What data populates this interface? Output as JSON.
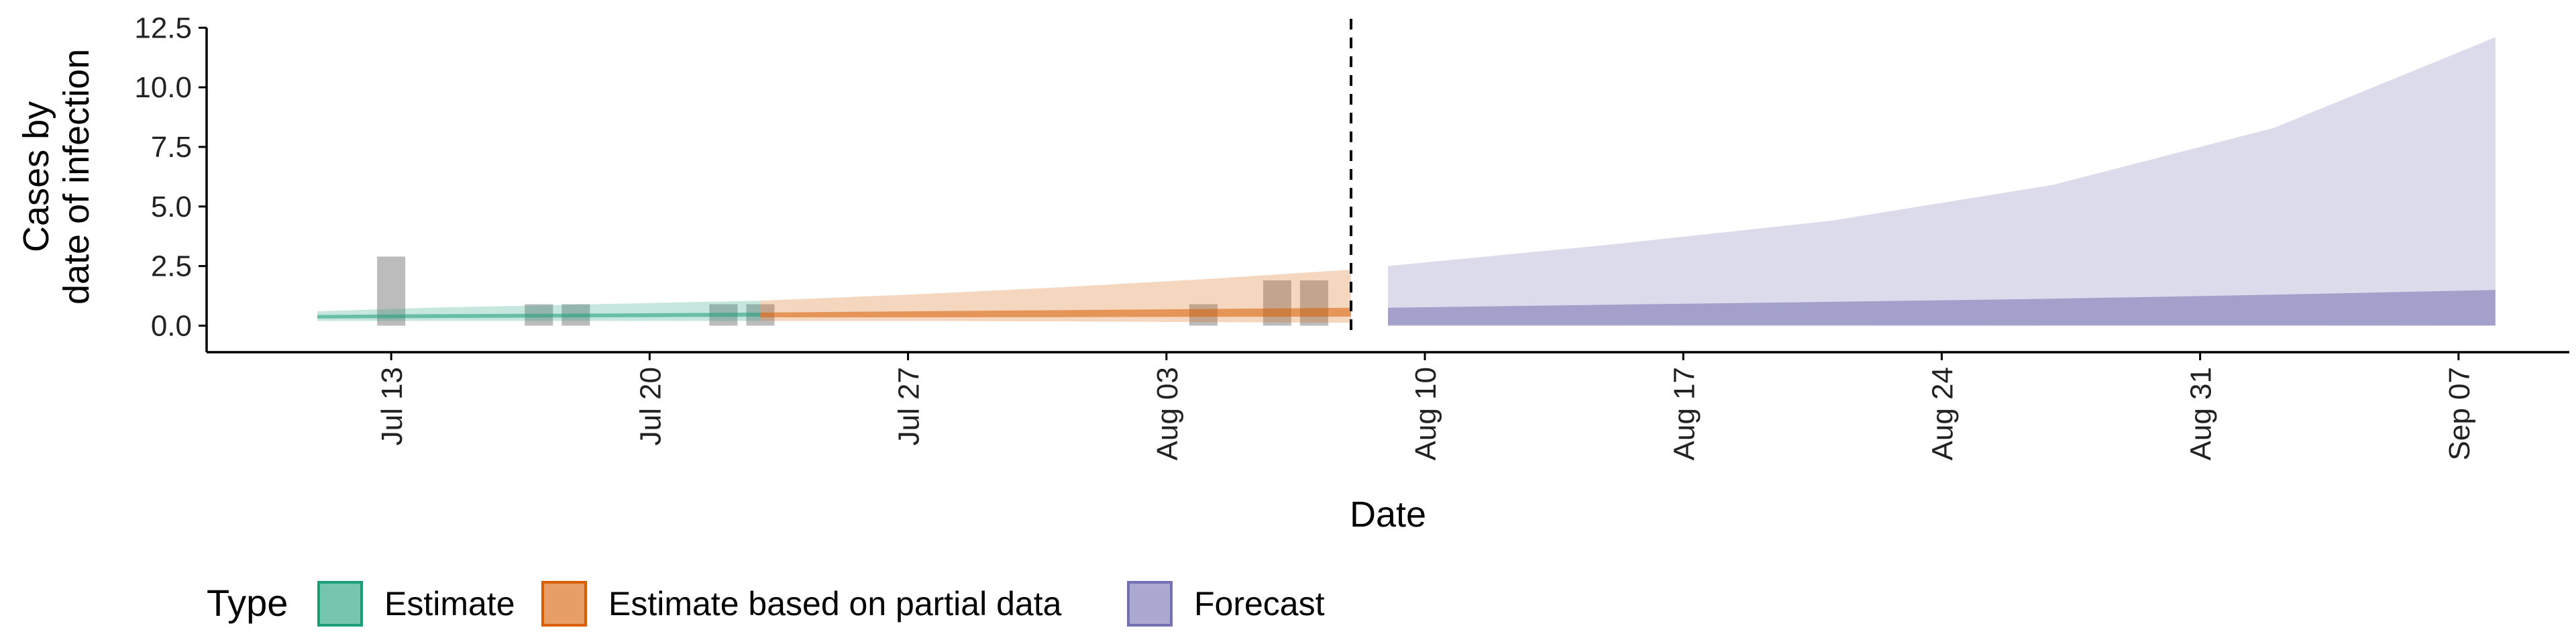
{
  "chart_data": {
    "type": "area",
    "xlabel": "Date",
    "ylabel_lines": [
      "Cases by",
      "date of infection"
    ],
    "ylim": [
      0,
      12.5
    ],
    "y_ticks": [
      0.0,
      2.5,
      5.0,
      7.5,
      10.0,
      12.5
    ],
    "y_tick_labels": [
      "0.0",
      "2.5",
      "5.0",
      "7.5",
      "10.0",
      "12.5"
    ],
    "xlim": [
      "2020-07-08",
      "2020-09-10"
    ],
    "x_ticks": [
      "2020-07-13",
      "2020-07-20",
      "2020-07-27",
      "2020-08-03",
      "2020-08-10",
      "2020-08-17",
      "2020-08-24",
      "2020-08-31",
      "2020-09-07"
    ],
    "x_tick_labels": [
      "Jul 13",
      "Jul 20",
      "Jul 27",
      "Aug 03",
      "Aug 10",
      "Aug 17",
      "Aug 24",
      "Aug 31",
      "Sep 07"
    ],
    "forecast_start": "2020-08-08",
    "legend": {
      "title": "Type",
      "position": "bottom",
      "entries": [
        "Estimate",
        "Estimate based on partial data",
        "Forecast"
      ]
    },
    "colors": {
      "Estimate": "#1b9e77",
      "Estimate based on partial data": "#d95f02",
      "Forecast": "#7570b3",
      "observed": "#a6a6a6"
    },
    "observed_cases": {
      "dates": [
        "2020-07-13",
        "2020-07-17",
        "2020-07-18",
        "2020-07-22",
        "2020-07-23",
        "2020-08-04",
        "2020-08-06",
        "2020-08-07"
      ],
      "values": [
        2.9,
        0.9,
        0.9,
        0.9,
        0.9,
        0.9,
        1.9,
        1.9
      ]
    },
    "series": [
      {
        "name": "Estimate",
        "dates": [
          "2020-07-11",
          "2020-07-14",
          "2020-07-17",
          "2020-07-20",
          "2020-07-23"
        ],
        "outer_lower": [
          0.2,
          0.2,
          0.2,
          0.2,
          0.2
        ],
        "outer_upper": [
          0.6,
          0.75,
          0.85,
          0.95,
          1.05
        ],
        "inner_lower": [
          0.3,
          0.32,
          0.34,
          0.36,
          0.38
        ],
        "inner_upper": [
          0.45,
          0.48,
          0.5,
          0.52,
          0.55
        ]
      },
      {
        "name": "Estimate based on partial data",
        "dates": [
          "2020-07-23",
          "2020-07-27",
          "2020-07-31",
          "2020-08-04",
          "2020-08-08"
        ],
        "outer_lower": [
          0.2,
          0.2,
          0.18,
          0.15,
          0.12
        ],
        "outer_upper": [
          1.05,
          1.3,
          1.6,
          1.95,
          2.35
        ],
        "inner_lower": [
          0.35,
          0.35,
          0.36,
          0.37,
          0.38
        ],
        "inner_upper": [
          0.55,
          0.6,
          0.65,
          0.7,
          0.75
        ]
      },
      {
        "name": "Forecast",
        "dates": [
          "2020-08-09",
          "2020-08-15",
          "2020-08-21",
          "2020-08-27",
          "2020-09-02",
          "2020-09-08"
        ],
        "outer_lower": [
          0.05,
          0.05,
          0.04,
          0.03,
          0.03,
          0.02
        ],
        "outer_upper": [
          2.5,
          3.4,
          4.4,
          5.9,
          8.3,
          12.1
        ],
        "inner_lower": [
          0.0,
          0.0,
          0.0,
          0.0,
          0.0,
          0.0
        ],
        "inner_upper": [
          0.75,
          0.88,
          1.0,
          1.13,
          1.3,
          1.5
        ]
      }
    ]
  }
}
